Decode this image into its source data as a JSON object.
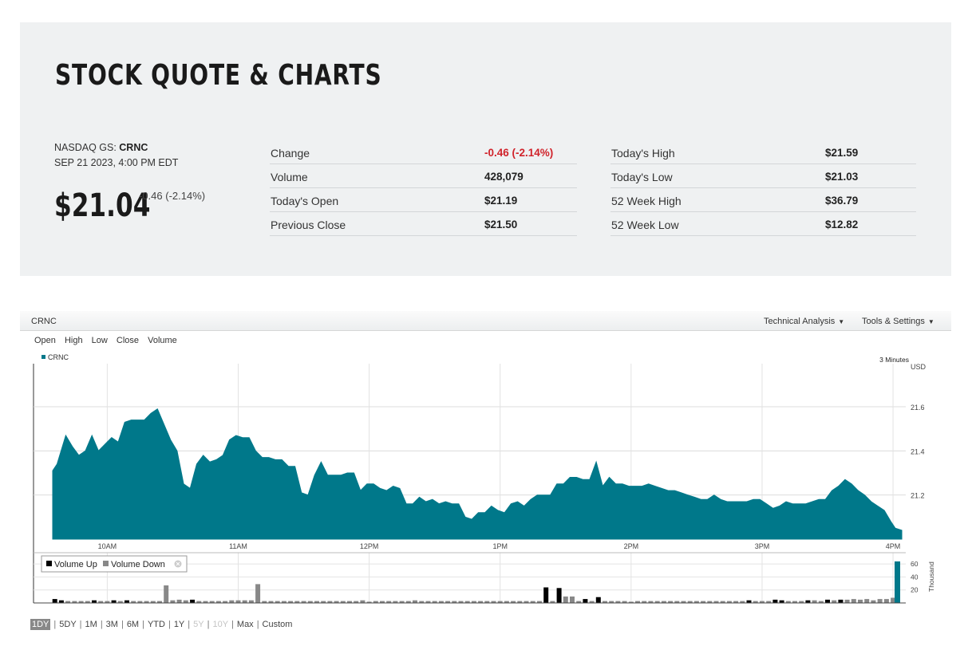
{
  "quote": {
    "title": "STOCK QUOTE & CHARTS",
    "exchange": "NASDAQ GS:",
    "symbol": "CRNC",
    "timestamp": "SEP 21 2023, 4:00 PM EDT",
    "price": "$21.04",
    "change": "-0.46 (-2.14%)",
    "stats_left": [
      {
        "label": "Change",
        "value": "-0.46 (-2.14%)",
        "negative": true
      },
      {
        "label": "Volume",
        "value": "428,079"
      },
      {
        "label": "Today's Open",
        "value": "$21.19"
      },
      {
        "label": "Previous Close",
        "value": "$21.50"
      }
    ],
    "stats_right": [
      {
        "label": "Today's High",
        "value": "$21.59"
      },
      {
        "label": "Today's Low",
        "value": "$21.03"
      },
      {
        "label": "52 Week High",
        "value": "$36.79"
      },
      {
        "label": "52 Week Low",
        "value": "$12.82"
      }
    ]
  },
  "chart_widget": {
    "symbol": "CRNC",
    "menus": [
      "Technical Analysis",
      "Tools & Settings"
    ],
    "price_types": [
      "Open",
      "High",
      "Low",
      "Close",
      "Volume"
    ],
    "interval": "3 Minutes",
    "currency": "USD",
    "volume_unit": "Thousand",
    "legend_up": "Volume Up",
    "legend_down": "Volume Down",
    "ranges": [
      {
        "label": "1DY",
        "state": "active"
      },
      {
        "label": "5DY",
        "state": "normal"
      },
      {
        "label": "1M",
        "state": "normal"
      },
      {
        "label": "3M",
        "state": "normal"
      },
      {
        "label": "6M",
        "state": "normal"
      },
      {
        "label": "YTD",
        "state": "normal"
      },
      {
        "label": "1Y",
        "state": "normal"
      },
      {
        "label": "5Y",
        "state": "disabled"
      },
      {
        "label": "10Y",
        "state": "disabled"
      },
      {
        "label": "Max",
        "state": "normal"
      },
      {
        "label": "Custom",
        "state": "normal"
      }
    ]
  },
  "chart_data": {
    "type": "area",
    "title": "",
    "series_name": "CRNC",
    "color": "#00788a",
    "x_time_start": "9:30",
    "x_time_end": "16:00",
    "x_tick_labels": [
      "10AM",
      "11AM",
      "12PM",
      "1PM",
      "2PM",
      "3PM",
      "4PM"
    ],
    "x_tick_minutes": [
      600,
      660,
      720,
      780,
      840,
      900,
      960
    ],
    "ylabel": "USD",
    "ylim": [
      21.0,
      21.8
    ],
    "y_ticks": [
      21.2,
      21.4,
      21.6
    ],
    "price_points": [
      [
        575,
        21.31
      ],
      [
        577,
        21.34
      ],
      [
        581,
        21.47
      ],
      [
        584,
        21.42
      ],
      [
        587,
        21.38
      ],
      [
        590,
        21.4
      ],
      [
        593,
        21.47
      ],
      [
        596,
        21.4
      ],
      [
        599,
        21.43
      ],
      [
        602,
        21.46
      ],
      [
        605,
        21.44
      ],
      [
        608,
        21.53
      ],
      [
        611,
        21.54
      ],
      [
        614,
        21.54
      ],
      [
        617,
        21.54
      ],
      [
        620,
        21.57
      ],
      [
        623,
        21.59
      ],
      [
        626,
        21.52
      ],
      [
        629,
        21.45
      ],
      [
        632,
        21.4
      ],
      [
        635,
        21.25
      ],
      [
        638,
        21.23
      ],
      [
        641,
        21.34
      ],
      [
        644,
        21.38
      ],
      [
        647,
        21.35
      ],
      [
        650,
        21.36
      ],
      [
        653,
        21.38
      ],
      [
        656,
        21.45
      ],
      [
        659,
        21.47
      ],
      [
        662,
        21.46
      ],
      [
        665,
        21.46
      ],
      [
        668,
        21.4
      ],
      [
        671,
        21.37
      ],
      [
        674,
        21.37
      ],
      [
        677,
        21.36
      ],
      [
        680,
        21.36
      ],
      [
        683,
        21.33
      ],
      [
        686,
        21.33
      ],
      [
        689,
        21.21
      ],
      [
        692,
        21.2
      ],
      [
        695,
        21.29
      ],
      [
        698,
        21.35
      ],
      [
        701,
        21.29
      ],
      [
        704,
        21.29
      ],
      [
        707,
        21.29
      ],
      [
        710,
        21.3
      ],
      [
        713,
        21.3
      ],
      [
        716,
        21.22
      ],
      [
        719,
        21.25
      ],
      [
        722,
        21.25
      ],
      [
        725,
        21.23
      ],
      [
        728,
        21.22
      ],
      [
        731,
        21.24
      ],
      [
        734,
        21.23
      ],
      [
        737,
        21.16
      ],
      [
        740,
        21.16
      ],
      [
        743,
        21.19
      ],
      [
        746,
        21.17
      ],
      [
        749,
        21.18
      ],
      [
        752,
        21.16
      ],
      [
        755,
        21.17
      ],
      [
        758,
        21.16
      ],
      [
        761,
        21.16
      ],
      [
        764,
        21.1
      ],
      [
        767,
        21.09
      ],
      [
        770,
        21.12
      ],
      [
        773,
        21.12
      ],
      [
        776,
        21.15
      ],
      [
        779,
        21.13
      ],
      [
        782,
        21.12
      ],
      [
        785,
        21.16
      ],
      [
        788,
        21.17
      ],
      [
        791,
        21.15
      ],
      [
        794,
        21.18
      ],
      [
        797,
        21.2
      ],
      [
        800,
        21.2
      ],
      [
        803,
        21.2
      ],
      [
        806,
        21.25
      ],
      [
        809,
        21.25
      ],
      [
        812,
        21.28
      ],
      [
        815,
        21.28
      ],
      [
        818,
        21.27
      ],
      [
        821,
        21.27
      ],
      [
        824,
        21.35
      ],
      [
        827,
        21.24
      ],
      [
        830,
        21.28
      ],
      [
        833,
        21.25
      ],
      [
        836,
        21.25
      ],
      [
        839,
        21.24
      ],
      [
        842,
        21.24
      ],
      [
        845,
        21.24
      ],
      [
        848,
        21.25
      ],
      [
        851,
        21.24
      ],
      [
        854,
        21.23
      ],
      [
        857,
        21.22
      ],
      [
        860,
        21.22
      ],
      [
        863,
        21.21
      ],
      [
        866,
        21.2
      ],
      [
        869,
        21.19
      ],
      [
        872,
        21.18
      ],
      [
        875,
        21.18
      ],
      [
        878,
        21.2
      ],
      [
        881,
        21.18
      ],
      [
        884,
        21.17
      ],
      [
        887,
        21.17
      ],
      [
        890,
        21.17
      ],
      [
        893,
        21.17
      ],
      [
        896,
        21.18
      ],
      [
        899,
        21.18
      ],
      [
        902,
        21.16
      ],
      [
        905,
        21.14
      ],
      [
        908,
        21.15
      ],
      [
        911,
        21.17
      ],
      [
        914,
        21.16
      ],
      [
        917,
        21.16
      ],
      [
        920,
        21.16
      ],
      [
        923,
        21.17
      ],
      [
        926,
        21.18
      ],
      [
        929,
        21.18
      ],
      [
        932,
        21.22
      ],
      [
        935,
        21.24
      ],
      [
        938,
        21.27
      ],
      [
        941,
        21.25
      ],
      [
        944,
        21.22
      ],
      [
        947,
        21.2
      ],
      [
        950,
        21.17
      ],
      [
        953,
        21.15
      ],
      [
        956,
        21.13
      ],
      [
        959,
        21.08
      ],
      [
        961,
        21.05
      ],
      [
        964,
        21.04
      ]
    ],
    "volume_up_color": "#000000",
    "volume_down_color": "#888888",
    "volume_ylim": [
      0,
      70
    ],
    "volume_ticks": [
      20,
      40,
      60
    ],
    "volume_bars": [
      {
        "t": 576,
        "v": 6,
        "dir": "up"
      },
      {
        "t": 579,
        "v": 4,
        "dir": "up"
      },
      {
        "t": 582,
        "v": 3,
        "dir": "down"
      },
      {
        "t": 585,
        "v": 3,
        "dir": "down"
      },
      {
        "t": 588,
        "v": 3,
        "dir": "down"
      },
      {
        "t": 591,
        "v": 3,
        "dir": "down"
      },
      {
        "t": 594,
        "v": 4,
        "dir": "up"
      },
      {
        "t": 597,
        "v": 3,
        "dir": "down"
      },
      {
        "t": 600,
        "v": 3,
        "dir": "down"
      },
      {
        "t": 603,
        "v": 4,
        "dir": "up"
      },
      {
        "t": 606,
        "v": 3,
        "dir": "down"
      },
      {
        "t": 609,
        "v": 4,
        "dir": "up"
      },
      {
        "t": 612,
        "v": 3,
        "dir": "down"
      },
      {
        "t": 615,
        "v": 3,
        "dir": "down"
      },
      {
        "t": 618,
        "v": 3,
        "dir": "down"
      },
      {
        "t": 621,
        "v": 3,
        "dir": "down"
      },
      {
        "t": 624,
        "v": 3,
        "dir": "down"
      },
      {
        "t": 627,
        "v": 27,
        "dir": "down"
      },
      {
        "t": 630,
        "v": 4,
        "dir": "down"
      },
      {
        "t": 633,
        "v": 5,
        "dir": "down"
      },
      {
        "t": 636,
        "v": 4,
        "dir": "down"
      },
      {
        "t": 639,
        "v": 5,
        "dir": "up"
      },
      {
        "t": 642,
        "v": 3,
        "dir": "down"
      },
      {
        "t": 645,
        "v": 3,
        "dir": "down"
      },
      {
        "t": 648,
        "v": 3,
        "dir": "down"
      },
      {
        "t": 651,
        "v": 3,
        "dir": "down"
      },
      {
        "t": 654,
        "v": 3,
        "dir": "down"
      },
      {
        "t": 657,
        "v": 4,
        "dir": "down"
      },
      {
        "t": 660,
        "v": 4,
        "dir": "down"
      },
      {
        "t": 663,
        "v": 4,
        "dir": "down"
      },
      {
        "t": 666,
        "v": 4,
        "dir": "down"
      },
      {
        "t": 669,
        "v": 29,
        "dir": "down"
      },
      {
        "t": 672,
        "v": 3,
        "dir": "down"
      },
      {
        "t": 675,
        "v": 3,
        "dir": "down"
      },
      {
        "t": 678,
        "v": 3,
        "dir": "down"
      },
      {
        "t": 681,
        "v": 3,
        "dir": "down"
      },
      {
        "t": 684,
        "v": 3,
        "dir": "down"
      },
      {
        "t": 687,
        "v": 3,
        "dir": "down"
      },
      {
        "t": 690,
        "v": 3,
        "dir": "down"
      },
      {
        "t": 693,
        "v": 3,
        "dir": "down"
      },
      {
        "t": 696,
        "v": 3,
        "dir": "down"
      },
      {
        "t": 699,
        "v": 3,
        "dir": "down"
      },
      {
        "t": 702,
        "v": 3,
        "dir": "down"
      },
      {
        "t": 705,
        "v": 3,
        "dir": "down"
      },
      {
        "t": 708,
        "v": 3,
        "dir": "down"
      },
      {
        "t": 711,
        "v": 3,
        "dir": "down"
      },
      {
        "t": 714,
        "v": 3,
        "dir": "down"
      },
      {
        "t": 717,
        "v": 4,
        "dir": "down"
      },
      {
        "t": 720,
        "v": 2,
        "dir": "down"
      },
      {
        "t": 723,
        "v": 3,
        "dir": "down"
      },
      {
        "t": 726,
        "v": 3,
        "dir": "down"
      },
      {
        "t": 729,
        "v": 3,
        "dir": "down"
      },
      {
        "t": 732,
        "v": 3,
        "dir": "down"
      },
      {
        "t": 735,
        "v": 3,
        "dir": "down"
      },
      {
        "t": 738,
        "v": 3,
        "dir": "down"
      },
      {
        "t": 741,
        "v": 4,
        "dir": "down"
      },
      {
        "t": 744,
        "v": 3,
        "dir": "down"
      },
      {
        "t": 747,
        "v": 3,
        "dir": "down"
      },
      {
        "t": 750,
        "v": 3,
        "dir": "down"
      },
      {
        "t": 753,
        "v": 3,
        "dir": "down"
      },
      {
        "t": 756,
        "v": 3,
        "dir": "down"
      },
      {
        "t": 759,
        "v": 3,
        "dir": "down"
      },
      {
        "t": 762,
        "v": 3,
        "dir": "down"
      },
      {
        "t": 765,
        "v": 3,
        "dir": "down"
      },
      {
        "t": 768,
        "v": 3,
        "dir": "down"
      },
      {
        "t": 771,
        "v": 3,
        "dir": "down"
      },
      {
        "t": 774,
        "v": 3,
        "dir": "down"
      },
      {
        "t": 777,
        "v": 3,
        "dir": "down"
      },
      {
        "t": 780,
        "v": 3,
        "dir": "down"
      },
      {
        "t": 783,
        "v": 3,
        "dir": "down"
      },
      {
        "t": 786,
        "v": 3,
        "dir": "down"
      },
      {
        "t": 789,
        "v": 3,
        "dir": "down"
      },
      {
        "t": 792,
        "v": 3,
        "dir": "down"
      },
      {
        "t": 795,
        "v": 3,
        "dir": "down"
      },
      {
        "t": 798,
        "v": 3,
        "dir": "down"
      },
      {
        "t": 801,
        "v": 24,
        "dir": "up"
      },
      {
        "t": 804,
        "v": 3,
        "dir": "down"
      },
      {
        "t": 807,
        "v": 23,
        "dir": "up"
      },
      {
        "t": 810,
        "v": 10,
        "dir": "down"
      },
      {
        "t": 813,
        "v": 10,
        "dir": "down"
      },
      {
        "t": 816,
        "v": 3,
        "dir": "down"
      },
      {
        "t": 819,
        "v": 6,
        "dir": "up"
      },
      {
        "t": 822,
        "v": 3,
        "dir": "down"
      },
      {
        "t": 825,
        "v": 9,
        "dir": "up"
      },
      {
        "t": 828,
        "v": 3,
        "dir": "down"
      },
      {
        "t": 831,
        "v": 3,
        "dir": "down"
      },
      {
        "t": 834,
        "v": 3,
        "dir": "down"
      },
      {
        "t": 837,
        "v": 3,
        "dir": "down"
      },
      {
        "t": 840,
        "v": 2,
        "dir": "down"
      },
      {
        "t": 843,
        "v": 3,
        "dir": "down"
      },
      {
        "t": 846,
        "v": 3,
        "dir": "down"
      },
      {
        "t": 849,
        "v": 3,
        "dir": "down"
      },
      {
        "t": 852,
        "v": 3,
        "dir": "down"
      },
      {
        "t": 855,
        "v": 3,
        "dir": "down"
      },
      {
        "t": 858,
        "v": 3,
        "dir": "down"
      },
      {
        "t": 861,
        "v": 3,
        "dir": "down"
      },
      {
        "t": 864,
        "v": 3,
        "dir": "down"
      },
      {
        "t": 867,
        "v": 3,
        "dir": "down"
      },
      {
        "t": 870,
        "v": 3,
        "dir": "down"
      },
      {
        "t": 873,
        "v": 3,
        "dir": "down"
      },
      {
        "t": 876,
        "v": 3,
        "dir": "down"
      },
      {
        "t": 879,
        "v": 3,
        "dir": "down"
      },
      {
        "t": 882,
        "v": 3,
        "dir": "down"
      },
      {
        "t": 885,
        "v": 3,
        "dir": "down"
      },
      {
        "t": 888,
        "v": 3,
        "dir": "down"
      },
      {
        "t": 891,
        "v": 3,
        "dir": "down"
      },
      {
        "t": 894,
        "v": 4,
        "dir": "up"
      },
      {
        "t": 897,
        "v": 3,
        "dir": "down"
      },
      {
        "t": 900,
        "v": 3,
        "dir": "down"
      },
      {
        "t": 903,
        "v": 3,
        "dir": "down"
      },
      {
        "t": 906,
        "v": 5,
        "dir": "up"
      },
      {
        "t": 909,
        "v": 4,
        "dir": "up"
      },
      {
        "t": 912,
        "v": 3,
        "dir": "down"
      },
      {
        "t": 915,
        "v": 3,
        "dir": "down"
      },
      {
        "t": 918,
        "v": 3,
        "dir": "down"
      },
      {
        "t": 921,
        "v": 4,
        "dir": "up"
      },
      {
        "t": 924,
        "v": 4,
        "dir": "down"
      },
      {
        "t": 927,
        "v": 3,
        "dir": "down"
      },
      {
        "t": 930,
        "v": 5,
        "dir": "up"
      },
      {
        "t": 933,
        "v": 4,
        "dir": "down"
      },
      {
        "t": 936,
        "v": 5,
        "dir": "up"
      },
      {
        "t": 939,
        "v": 5,
        "dir": "down"
      },
      {
        "t": 942,
        "v": 6,
        "dir": "down"
      },
      {
        "t": 945,
        "v": 5,
        "dir": "down"
      },
      {
        "t": 948,
        "v": 6,
        "dir": "down"
      },
      {
        "t": 951,
        "v": 4,
        "dir": "down"
      },
      {
        "t": 954,
        "v": 6,
        "dir": "down"
      },
      {
        "t": 957,
        "v": 6,
        "dir": "down"
      },
      {
        "t": 960,
        "v": 8,
        "dir": "down"
      },
      {
        "t": 962,
        "v": 64,
        "dir": "close"
      }
    ]
  }
}
